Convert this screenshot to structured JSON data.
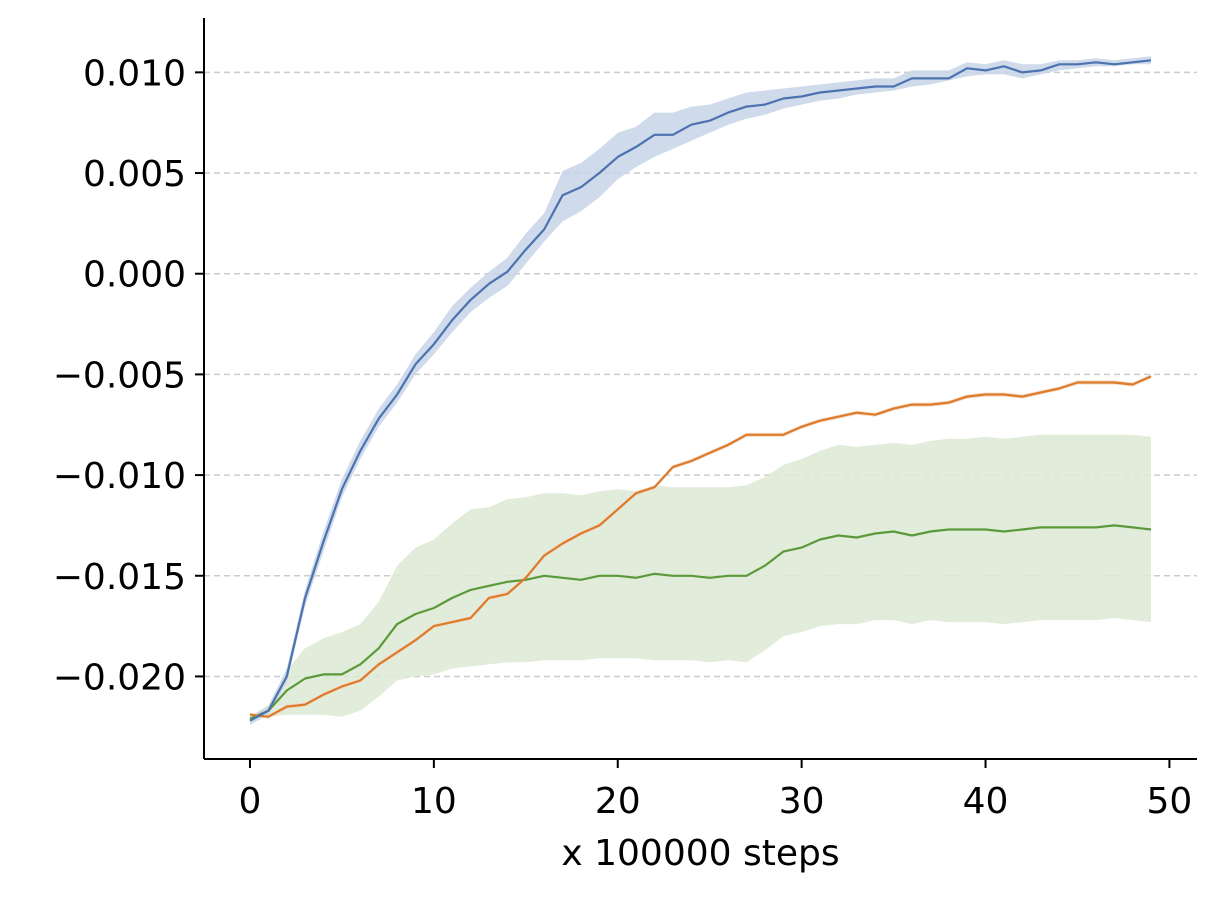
{
  "chart_data": {
    "type": "line",
    "title": "",
    "xlabel": "x 100000 steps",
    "ylabel": "",
    "xlim": [
      -2.5,
      51.5
    ],
    "ylim": [
      -0.0241,
      0.0127
    ],
    "x_ticks": [
      0,
      10,
      20,
      30,
      40,
      50
    ],
    "x_tick_labels": [
      "0",
      "10",
      "20",
      "30",
      "40",
      "50"
    ],
    "y_ticks": [
      -0.02,
      -0.015,
      -0.01,
      -0.005,
      0.0,
      0.005,
      0.01
    ],
    "y_tick_labels": [
      "−0.020",
      "−0.015",
      "−0.010",
      "−0.005",
      "0.000",
      "0.005",
      "0.010"
    ],
    "grid": "y-dashed",
    "legend": "none",
    "x": [
      0,
      1,
      2,
      3,
      4,
      5,
      6,
      7,
      8,
      9,
      10,
      11,
      12,
      13,
      14,
      15,
      16,
      17,
      18,
      19,
      20,
      21,
      22,
      23,
      24,
      25,
      26,
      27,
      28,
      29,
      30,
      31,
      32,
      33,
      34,
      35,
      36,
      37,
      38,
      39,
      40,
      41,
      42,
      43,
      44,
      45,
      46,
      47,
      48,
      49
    ],
    "series": [
      {
        "color": "#4c72b0",
        "band_color": "#c7d4e8",
        "values": [
          -0.0222,
          -0.0217,
          -0.02,
          -0.0161,
          -0.0133,
          -0.0107,
          -0.0088,
          -0.0072,
          -0.006,
          -0.0045,
          -0.0035,
          -0.0023,
          -0.0013,
          -0.0005,
          0.0001,
          0.0012,
          0.0022,
          0.0039,
          0.0043,
          0.005,
          0.0058,
          0.0063,
          0.0069,
          0.0069,
          0.0074,
          0.0076,
          0.008,
          0.0083,
          0.0084,
          0.0087,
          0.0088,
          0.009,
          0.0091,
          0.0092,
          0.0093,
          0.0093,
          0.0097,
          0.0097,
          0.0097,
          0.0102,
          0.0101,
          0.0103,
          0.01,
          0.0101,
          0.0104,
          0.0104,
          0.0105,
          0.0104,
          0.0105,
          0.0106
        ],
        "lower": [
          -0.0224,
          -0.0219,
          -0.0203,
          -0.0165,
          -0.0138,
          -0.0111,
          -0.0092,
          -0.0076,
          -0.0064,
          -0.005,
          -0.004,
          -0.0029,
          -0.0019,
          -0.0012,
          -0.0006,
          0.0005,
          0.0016,
          0.0026,
          0.0031,
          0.0038,
          0.0047,
          0.0053,
          0.0058,
          0.0062,
          0.0066,
          0.007,
          0.0074,
          0.0077,
          0.0079,
          0.0082,
          0.0084,
          0.0086,
          0.0087,
          0.0089,
          0.009,
          0.0091,
          0.0093,
          0.0094,
          0.0096,
          0.0098,
          0.0099,
          0.0099,
          0.0097,
          0.0099,
          0.0101,
          0.0102,
          0.0103,
          0.0103,
          0.0104,
          0.0104
        ],
        "upper": [
          -0.022,
          -0.0215,
          -0.0196,
          -0.0157,
          -0.0128,
          -0.0102,
          -0.0083,
          -0.0067,
          -0.0055,
          -0.004,
          -0.0029,
          -0.0016,
          -0.0007,
          0.0001,
          0.0008,
          0.002,
          0.003,
          0.0051,
          0.0055,
          0.0062,
          0.007,
          0.0073,
          0.008,
          0.008,
          0.0083,
          0.0084,
          0.0087,
          0.009,
          0.0091,
          0.0092,
          0.0093,
          0.0094,
          0.0095,
          0.0096,
          0.0097,
          0.0097,
          0.0101,
          0.0101,
          0.0101,
          0.0105,
          0.0104,
          0.0106,
          0.0104,
          0.0104,
          0.0106,
          0.0106,
          0.0107,
          0.0106,
          0.0107,
          0.0108
        ]
      },
      {
        "color": "#dd7b2d",
        "band_color": "#f6d6bd",
        "values": [
          -0.0219,
          -0.022,
          -0.0215,
          -0.0214,
          -0.0209,
          -0.0205,
          -0.0202,
          -0.0194,
          -0.0188,
          -0.0182,
          -0.0175,
          -0.0173,
          -0.0171,
          -0.0161,
          -0.0159,
          -0.0151,
          -0.014,
          -0.0134,
          -0.0129,
          -0.0125,
          -0.0117,
          -0.0109,
          -0.0106,
          -0.0096,
          -0.0093,
          -0.0089,
          -0.0085,
          -0.008,
          -0.008,
          -0.008,
          -0.0076,
          -0.0073,
          -0.0071,
          -0.0069,
          -0.007,
          -0.0067,
          -0.0065,
          -0.0065,
          -0.0064,
          -0.0061,
          -0.006,
          -0.006,
          -0.0061,
          -0.0059,
          -0.0057,
          -0.0054,
          -0.0054,
          -0.0054,
          -0.0055,
          -0.0051
        ],
        "lower": [
          -0.022,
          -0.0221,
          -0.0216,
          -0.0215,
          -0.021,
          -0.0206,
          -0.0203,
          -0.0195,
          -0.0189,
          -0.0183,
          -0.0176,
          -0.0174,
          -0.0172,
          -0.0162,
          -0.016,
          -0.0152,
          -0.0141,
          -0.0135,
          -0.013,
          -0.0126,
          -0.0118,
          -0.011,
          -0.0107,
          -0.0097,
          -0.0094,
          -0.009,
          -0.0086,
          -0.0081,
          -0.0081,
          -0.0081,
          -0.0077,
          -0.0074,
          -0.0072,
          -0.007,
          -0.0071,
          -0.0068,
          -0.0066,
          -0.0066,
          -0.0065,
          -0.0062,
          -0.0061,
          -0.0061,
          -0.0062,
          -0.006,
          -0.0058,
          -0.0055,
          -0.0055,
          -0.0055,
          -0.0056,
          -0.0052
        ],
        "upper": [
          -0.0218,
          -0.0219,
          -0.0214,
          -0.0213,
          -0.0208,
          -0.0204,
          -0.0201,
          -0.0193,
          -0.0187,
          -0.0181,
          -0.0174,
          -0.0172,
          -0.017,
          -0.016,
          -0.0158,
          -0.015,
          -0.0139,
          -0.0133,
          -0.0128,
          -0.0124,
          -0.0116,
          -0.0108,
          -0.0105,
          -0.0095,
          -0.0092,
          -0.0088,
          -0.0084,
          -0.0079,
          -0.0079,
          -0.0079,
          -0.0075,
          -0.0072,
          -0.007,
          -0.0068,
          -0.0069,
          -0.0066,
          -0.0064,
          -0.0064,
          -0.0063,
          -0.006,
          -0.0059,
          -0.0059,
          -0.006,
          -0.0058,
          -0.0056,
          -0.0053,
          -0.0053,
          -0.0053,
          -0.0054,
          -0.005
        ]
      },
      {
        "color": "#5a9a3a",
        "band_color": "#dde9d3",
        "values": [
          -0.0221,
          -0.0217,
          -0.0207,
          -0.0201,
          -0.0199,
          -0.0199,
          -0.0194,
          -0.0186,
          -0.0174,
          -0.0169,
          -0.0166,
          -0.0161,
          -0.0157,
          -0.0155,
          -0.0153,
          -0.0152,
          -0.015,
          -0.0151,
          -0.0152,
          -0.015,
          -0.015,
          -0.0151,
          -0.0149,
          -0.015,
          -0.015,
          -0.0151,
          -0.015,
          -0.015,
          -0.0145,
          -0.0138,
          -0.0136,
          -0.0132,
          -0.013,
          -0.0131,
          -0.0129,
          -0.0128,
          -0.013,
          -0.0128,
          -0.0127,
          -0.0127,
          -0.0127,
          -0.0128,
          -0.0127,
          -0.0126,
          -0.0126,
          -0.0126,
          -0.0126,
          -0.0125,
          -0.0126,
          -0.0127
        ],
        "lower": [
          -0.0222,
          -0.022,
          -0.0219,
          -0.0219,
          -0.0219,
          -0.022,
          -0.0217,
          -0.021,
          -0.0202,
          -0.02,
          -0.0199,
          -0.0196,
          -0.0195,
          -0.0194,
          -0.0193,
          -0.0193,
          -0.0192,
          -0.0192,
          -0.0192,
          -0.0191,
          -0.0191,
          -0.0191,
          -0.0192,
          -0.0192,
          -0.0192,
          -0.0193,
          -0.0192,
          -0.0193,
          -0.0187,
          -0.018,
          -0.0178,
          -0.0175,
          -0.0174,
          -0.0174,
          -0.0172,
          -0.0172,
          -0.0174,
          -0.0172,
          -0.0173,
          -0.0173,
          -0.0173,
          -0.0174,
          -0.0173,
          -0.0172,
          -0.0172,
          -0.0172,
          -0.0172,
          -0.0171,
          -0.0172,
          -0.0173
        ],
        "upper": [
          -0.022,
          -0.0214,
          -0.0197,
          -0.0186,
          -0.0181,
          -0.0178,
          -0.0174,
          -0.0163,
          -0.0145,
          -0.0136,
          -0.0132,
          -0.0124,
          -0.0117,
          -0.0116,
          -0.0112,
          -0.0111,
          -0.0109,
          -0.0109,
          -0.011,
          -0.0108,
          -0.0107,
          -0.0108,
          -0.0105,
          -0.0106,
          -0.0106,
          -0.0106,
          -0.0106,
          -0.0105,
          -0.0101,
          -0.0095,
          -0.0092,
          -0.0088,
          -0.0085,
          -0.0086,
          -0.0085,
          -0.0084,
          -0.0085,
          -0.0083,
          -0.0082,
          -0.0082,
          -0.0081,
          -0.0082,
          -0.0081,
          -0.008,
          -0.008,
          -0.008,
          -0.008,
          -0.008,
          -0.008,
          -0.0081
        ]
      }
    ]
  }
}
